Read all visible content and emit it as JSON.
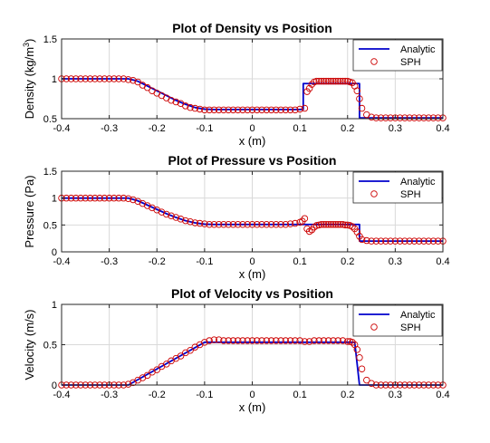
{
  "colors": {
    "analytic": "#0000cc",
    "sph": "#cc0000",
    "grid": "#d9d9d9",
    "axis": "#262626"
  },
  "chart_data": [
    {
      "type": "line",
      "title": "Plot of Density vs Position",
      "xlabel": "x (m)",
      "ylabel_main": "Density (kg/m",
      "ylabel_sup": "3",
      "ylabel_end": ")",
      "xlim": [
        -0.4,
        0.4
      ],
      "ylim": [
        0.5,
        1.5
      ],
      "xticks": [
        -0.4,
        -0.3,
        -0.2,
        -0.1,
        0,
        0.1,
        0.2,
        0.3,
        0.4
      ],
      "xtick_labels": [
        "-0.4",
        "-0.3",
        "-0.2",
        "-0.1",
        "0",
        "0.1",
        "0.2",
        "0.3",
        "0.4"
      ],
      "yticks": [
        0.5,
        1,
        1.5
      ],
      "ytick_labels": [
        "0.5",
        "1",
        "1.5"
      ],
      "grid": true,
      "legend_position": "top-right",
      "series": [
        {
          "name": "Analytic",
          "style": "line",
          "x": [
            -0.4,
            -0.26,
            -0.24,
            -0.22,
            -0.2,
            -0.18,
            -0.16,
            -0.14,
            -0.12,
            -0.1,
            -0.08,
            0.107,
            0.107,
            0.225,
            0.225,
            0.4
          ],
          "y": [
            1.0,
            1.0,
            0.97,
            0.91,
            0.85,
            0.79,
            0.73,
            0.68,
            0.64,
            0.62,
            0.615,
            0.615,
            0.94,
            0.94,
            0.51,
            0.51
          ]
        },
        {
          "name": "SPH",
          "style": "marker",
          "x": [
            -0.4,
            -0.39,
            -0.38,
            -0.37,
            -0.36,
            -0.35,
            -0.34,
            -0.33,
            -0.32,
            -0.31,
            -0.3,
            -0.29,
            -0.28,
            -0.27,
            -0.26,
            -0.25,
            -0.24,
            -0.23,
            -0.22,
            -0.21,
            -0.2,
            -0.19,
            -0.18,
            -0.17,
            -0.16,
            -0.15,
            -0.14,
            -0.13,
            -0.12,
            -0.11,
            -0.1,
            -0.09,
            -0.08,
            -0.07,
            -0.06,
            -0.05,
            -0.04,
            -0.03,
            -0.02,
            -0.01,
            0.0,
            0.01,
            0.02,
            0.03,
            0.04,
            0.05,
            0.06,
            0.07,
            0.08,
            0.09,
            0.1,
            0.11,
            0.115,
            0.12,
            0.125,
            0.13,
            0.135,
            0.14,
            0.145,
            0.15,
            0.155,
            0.16,
            0.165,
            0.17,
            0.175,
            0.18,
            0.185,
            0.19,
            0.195,
            0.2,
            0.205,
            0.21,
            0.215,
            0.22,
            0.225,
            0.23,
            0.24,
            0.25,
            0.26,
            0.27,
            0.28,
            0.29,
            0.3,
            0.31,
            0.32,
            0.33,
            0.34,
            0.35,
            0.36,
            0.37,
            0.38,
            0.39,
            0.4
          ],
          "y": [
            1.0,
            1.0,
            1.0,
            1.0,
            1.0,
            1.0,
            1.0,
            1.0,
            1.0,
            1.0,
            1.0,
            1.0,
            1.0,
            1.0,
            0.99,
            0.98,
            0.96,
            0.92,
            0.89,
            0.85,
            0.82,
            0.79,
            0.76,
            0.73,
            0.71,
            0.69,
            0.66,
            0.64,
            0.63,
            0.62,
            0.61,
            0.61,
            0.61,
            0.61,
            0.61,
            0.61,
            0.61,
            0.61,
            0.61,
            0.61,
            0.61,
            0.61,
            0.61,
            0.61,
            0.61,
            0.61,
            0.61,
            0.61,
            0.61,
            0.61,
            0.62,
            0.63,
            0.84,
            0.88,
            0.93,
            0.96,
            0.97,
            0.97,
            0.97,
            0.97,
            0.97,
            0.97,
            0.97,
            0.97,
            0.97,
            0.97,
            0.97,
            0.97,
            0.97,
            0.97,
            0.96,
            0.95,
            0.91,
            0.85,
            0.75,
            0.63,
            0.55,
            0.52,
            0.51,
            0.51,
            0.51,
            0.51,
            0.51,
            0.51,
            0.51,
            0.51,
            0.51,
            0.51,
            0.51,
            0.51,
            0.51,
            0.51,
            0.51
          ]
        }
      ]
    },
    {
      "type": "line",
      "title": "Plot of Pressure vs Position",
      "xlabel": "x (m)",
      "ylabel_main": "Pressure (Pa)",
      "ylabel_sup": "",
      "ylabel_end": "",
      "xlim": [
        -0.4,
        0.4
      ],
      "ylim": [
        0,
        1.5
      ],
      "xticks": [
        -0.4,
        -0.3,
        -0.2,
        -0.1,
        0,
        0.1,
        0.2,
        0.3,
        0.4
      ],
      "xtick_labels": [
        "-0.4",
        "-0.3",
        "-0.2",
        "-0.1",
        "0",
        "0.1",
        "0.2",
        "0.3",
        "0.4"
      ],
      "yticks": [
        0,
        0.5,
        1,
        1.5
      ],
      "ytick_labels": [
        "0",
        "0.5",
        "1",
        "1.5"
      ],
      "grid": true,
      "legend_position": "top-right",
      "series": [
        {
          "name": "Analytic",
          "style": "line",
          "x": [
            -0.4,
            -0.26,
            -0.24,
            -0.22,
            -0.2,
            -0.18,
            -0.16,
            -0.14,
            -0.12,
            -0.1,
            -0.08,
            0.225,
            0.225,
            0.4
          ],
          "y": [
            1.0,
            1.0,
            0.95,
            0.87,
            0.79,
            0.71,
            0.64,
            0.58,
            0.54,
            0.515,
            0.51,
            0.51,
            0.2,
            0.2
          ]
        },
        {
          "name": "SPH",
          "style": "marker",
          "x": [
            -0.4,
            -0.39,
            -0.38,
            -0.37,
            -0.36,
            -0.35,
            -0.34,
            -0.33,
            -0.32,
            -0.31,
            -0.3,
            -0.29,
            -0.28,
            -0.27,
            -0.26,
            -0.25,
            -0.24,
            -0.23,
            -0.22,
            -0.21,
            -0.2,
            -0.19,
            -0.18,
            -0.17,
            -0.16,
            -0.15,
            -0.14,
            -0.13,
            -0.12,
            -0.11,
            -0.1,
            -0.09,
            -0.08,
            -0.07,
            -0.06,
            -0.05,
            -0.04,
            -0.03,
            -0.02,
            -0.01,
            0.0,
            0.01,
            0.02,
            0.03,
            0.04,
            0.05,
            0.06,
            0.07,
            0.08,
            0.09,
            0.1,
            0.105,
            0.11,
            0.115,
            0.12,
            0.125,
            0.13,
            0.135,
            0.14,
            0.145,
            0.15,
            0.155,
            0.16,
            0.165,
            0.17,
            0.175,
            0.18,
            0.185,
            0.19,
            0.195,
            0.2,
            0.205,
            0.21,
            0.215,
            0.22,
            0.225,
            0.23,
            0.24,
            0.25,
            0.26,
            0.27,
            0.28,
            0.29,
            0.3,
            0.31,
            0.32,
            0.33,
            0.34,
            0.35,
            0.36,
            0.37,
            0.38,
            0.39,
            0.4
          ],
          "y": [
            1.0,
            1.0,
            1.0,
            1.0,
            1.0,
            1.0,
            1.0,
            1.0,
            1.0,
            1.0,
            1.0,
            1.0,
            1.0,
            1.0,
            0.99,
            0.97,
            0.94,
            0.9,
            0.86,
            0.82,
            0.78,
            0.74,
            0.7,
            0.67,
            0.64,
            0.61,
            0.58,
            0.56,
            0.54,
            0.53,
            0.52,
            0.51,
            0.51,
            0.51,
            0.51,
            0.51,
            0.51,
            0.51,
            0.51,
            0.51,
            0.51,
            0.51,
            0.51,
            0.51,
            0.51,
            0.51,
            0.51,
            0.51,
            0.52,
            0.53,
            0.55,
            0.57,
            0.62,
            0.43,
            0.38,
            0.41,
            0.46,
            0.49,
            0.5,
            0.51,
            0.51,
            0.51,
            0.51,
            0.51,
            0.51,
            0.51,
            0.51,
            0.51,
            0.51,
            0.5,
            0.5,
            0.49,
            0.47,
            0.43,
            0.37,
            0.29,
            0.23,
            0.21,
            0.2,
            0.2,
            0.2,
            0.2,
            0.2,
            0.2,
            0.2,
            0.2,
            0.2,
            0.2,
            0.2,
            0.2,
            0.2,
            0.2,
            0.2,
            0.2
          ]
        }
      ]
    },
    {
      "type": "line",
      "title": "Plot of Velocity vs Position",
      "xlabel": "x (m)",
      "ylabel_main": "Velocity (m/s)",
      "ylabel_sup": "",
      "ylabel_end": "",
      "xlim": [
        -0.4,
        0.4
      ],
      "ylim": [
        0,
        1
      ],
      "xticks": [
        -0.4,
        -0.3,
        -0.2,
        -0.1,
        0,
        0.1,
        0.2,
        0.3,
        0.4
      ],
      "xtick_labels": [
        "-0.4",
        "-0.3",
        "-0.2",
        "-0.1",
        "0",
        "0.1",
        "0.2",
        "0.3",
        "0.4"
      ],
      "yticks": [
        0,
        0.5,
        1
      ],
      "ytick_labels": [
        "0",
        "0.5",
        "1"
      ],
      "grid": true,
      "legend_position": "top-right",
      "series": [
        {
          "name": "Analytic",
          "style": "line",
          "x": [
            -0.4,
            -0.26,
            -0.1,
            0.215,
            0.225,
            0.4
          ],
          "y": [
            0.0,
            0.0,
            0.53,
            0.53,
            0.0,
            0.0
          ]
        },
        {
          "name": "SPH",
          "style": "marker",
          "x": [
            -0.4,
            -0.39,
            -0.38,
            -0.37,
            -0.36,
            -0.35,
            -0.34,
            -0.33,
            -0.32,
            -0.31,
            -0.3,
            -0.29,
            -0.28,
            -0.27,
            -0.26,
            -0.25,
            -0.24,
            -0.23,
            -0.22,
            -0.21,
            -0.2,
            -0.19,
            -0.18,
            -0.17,
            -0.16,
            -0.15,
            -0.14,
            -0.13,
            -0.12,
            -0.11,
            -0.1,
            -0.09,
            -0.08,
            -0.07,
            -0.06,
            -0.05,
            -0.04,
            -0.03,
            -0.02,
            -0.01,
            0.0,
            0.01,
            0.02,
            0.03,
            0.04,
            0.05,
            0.06,
            0.07,
            0.08,
            0.09,
            0.1,
            0.11,
            0.12,
            0.13,
            0.14,
            0.15,
            0.16,
            0.17,
            0.18,
            0.19,
            0.2,
            0.205,
            0.21,
            0.215,
            0.22,
            0.225,
            0.23,
            0.24,
            0.25,
            0.26,
            0.27,
            0.28,
            0.29,
            0.3,
            0.31,
            0.32,
            0.33,
            0.34,
            0.35,
            0.36,
            0.37,
            0.38,
            0.39,
            0.4
          ],
          "y": [
            0.0,
            0.0,
            0.0,
            0.0,
            0.0,
            0.0,
            0.0,
            0.0,
            0.0,
            0.0,
            0.0,
            0.0,
            0.0,
            0.0,
            0.01,
            0.03,
            0.06,
            0.09,
            0.12,
            0.16,
            0.19,
            0.23,
            0.26,
            0.3,
            0.33,
            0.36,
            0.4,
            0.43,
            0.47,
            0.5,
            0.53,
            0.55,
            0.56,
            0.56,
            0.55,
            0.55,
            0.55,
            0.55,
            0.55,
            0.55,
            0.55,
            0.55,
            0.55,
            0.55,
            0.55,
            0.55,
            0.55,
            0.55,
            0.55,
            0.55,
            0.55,
            0.54,
            0.54,
            0.55,
            0.55,
            0.55,
            0.55,
            0.55,
            0.55,
            0.55,
            0.54,
            0.54,
            0.53,
            0.5,
            0.44,
            0.34,
            0.2,
            0.06,
            0.02,
            0.0,
            0.0,
            0.0,
            0.0,
            0.0,
            0.0,
            0.0,
            0.0,
            0.0,
            0.0,
            0.0,
            0.0,
            0.0,
            0.0,
            0.0
          ]
        }
      ]
    }
  ]
}
